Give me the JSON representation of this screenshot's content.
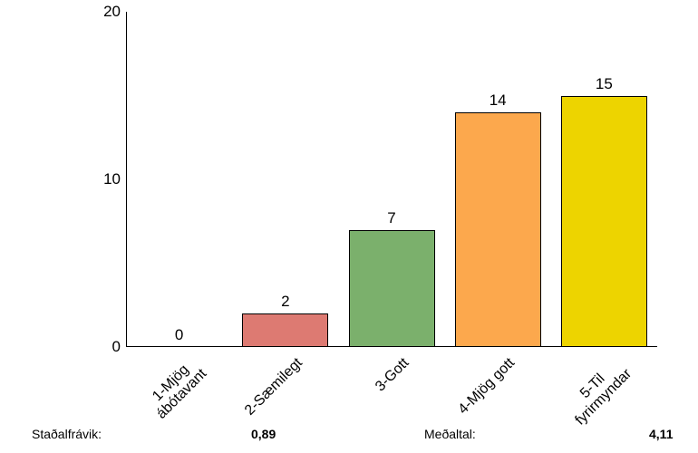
{
  "chart_data": {
    "type": "bar",
    "title": "",
    "xlabel": "",
    "ylabel": "",
    "categories": [
      "1-Mjög\nábótavant",
      "2-Sæmilegt",
      "3-Gott",
      "4-Mjög gott",
      "5-Til\nfyrirmyndar"
    ],
    "values": [
      0,
      2,
      7,
      14,
      15
    ],
    "value_labels": [
      "0",
      "2",
      "7",
      "14",
      "15"
    ],
    "bar_colors": [
      null,
      "#dd7a72",
      "#7bb06c",
      "#fca84d",
      "#edd400"
    ],
    "bar_border_color": "#000000",
    "ylim": [
      0,
      20
    ],
    "yticks": [
      0,
      10,
      20
    ],
    "grid": false,
    "legend": false,
    "axis_color": "#000000",
    "background_color": "#ffffff"
  },
  "stats": {
    "stddev_label": "Staðalfrávik:",
    "stddev_value": "0,89",
    "mean_label": "Meðaltal:",
    "mean_value": "4,11"
  }
}
